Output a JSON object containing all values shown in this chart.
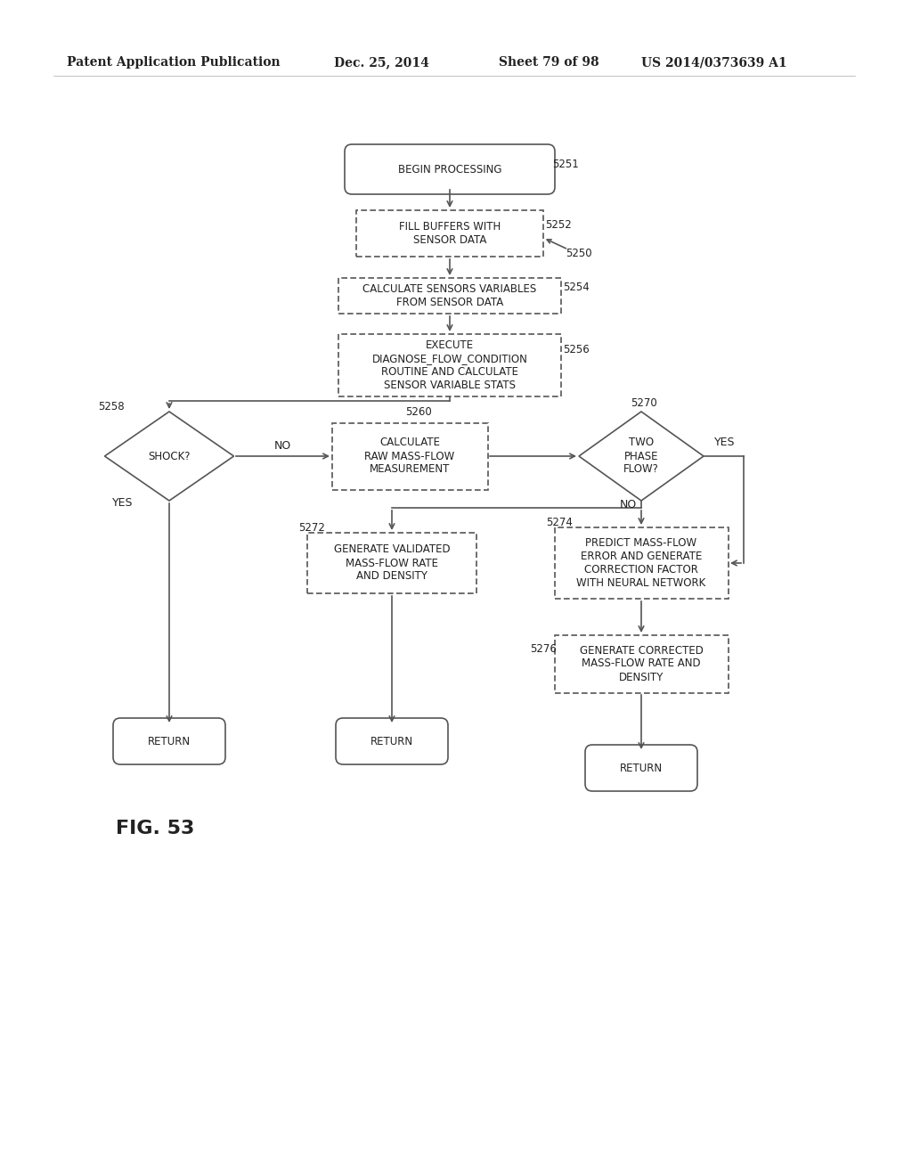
{
  "bg_color": "#ffffff",
  "header_text": "Patent Application Publication",
  "header_date": "Dec. 25, 2014",
  "header_sheet": "Sheet 79 of 98",
  "header_patent": "US 2014/0373639 A1",
  "fig_label": "FIG. 53",
  "line_color": "#555555",
  "text_color": "#222222"
}
